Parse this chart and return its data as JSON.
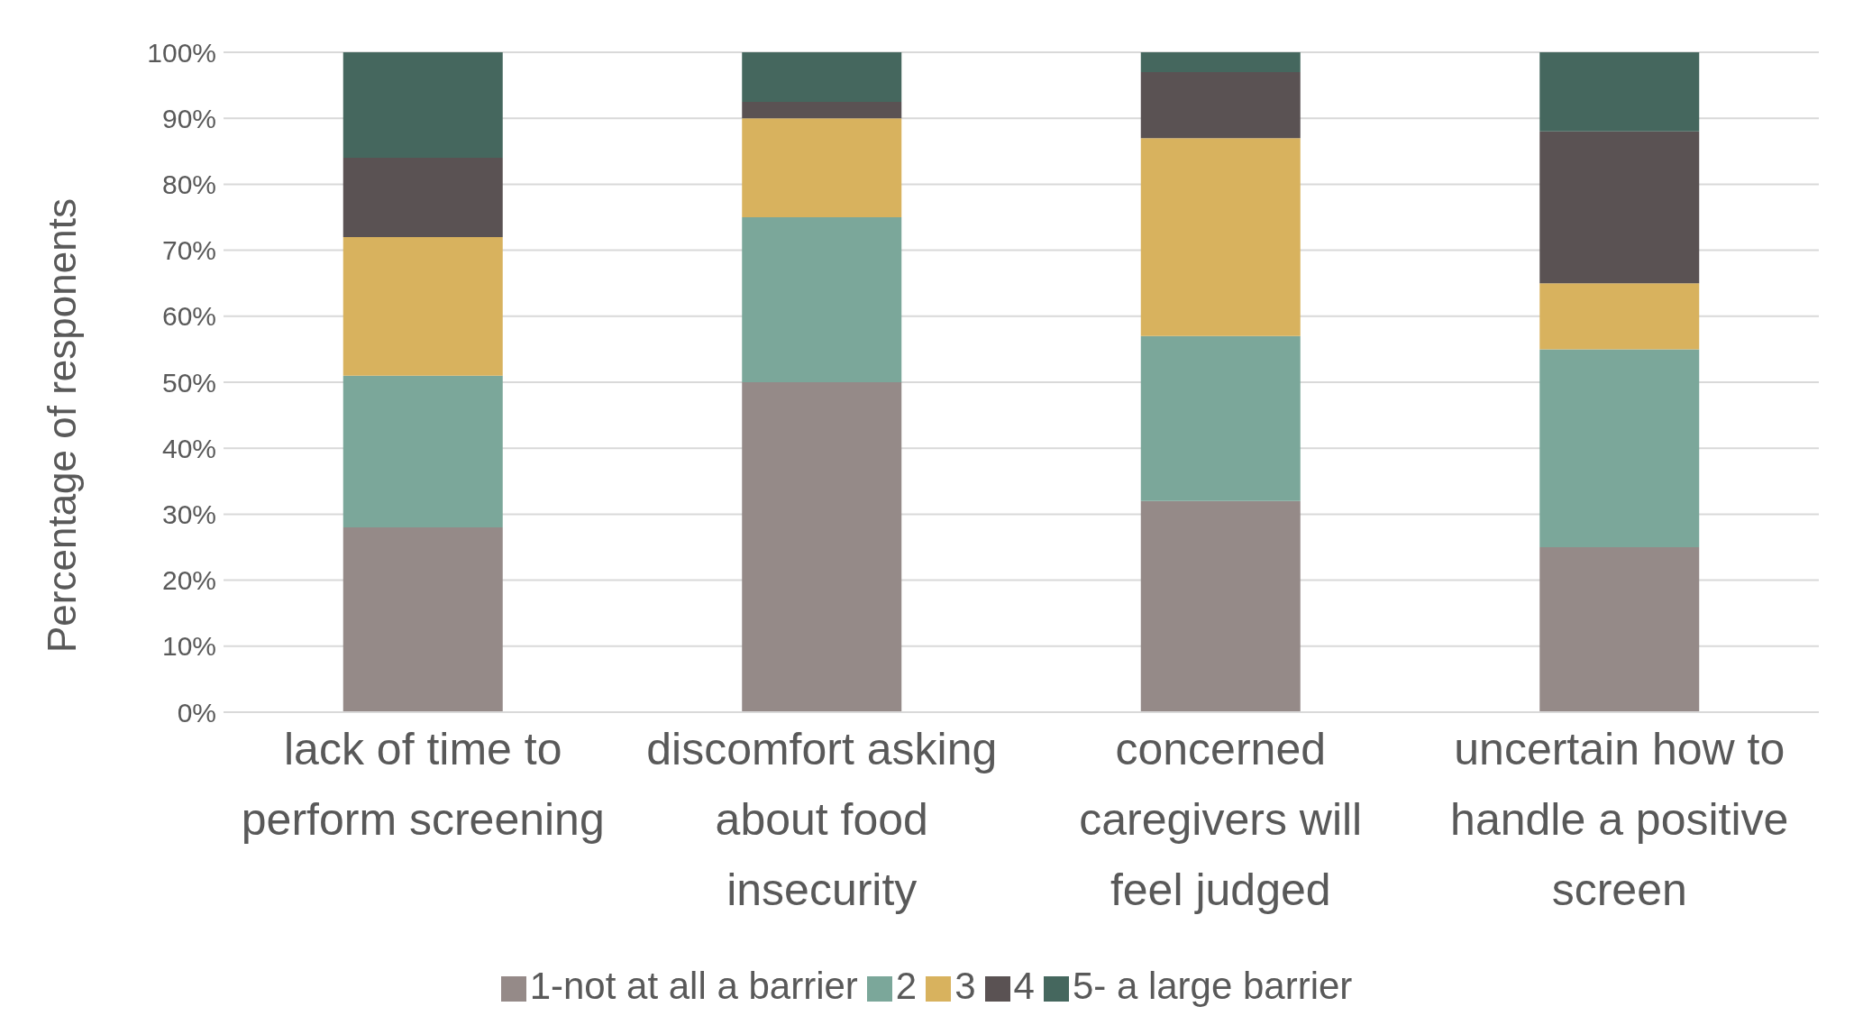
{
  "chart_data": {
    "type": "bar",
    "stacked": true,
    "ylabel": "Percentage of responents",
    "categories": [
      "lack of time to perform screening",
      "discomfort asking about food insecurity",
      "concerned caregivers will feel judged",
      "uncertain how to handle a positive screen"
    ],
    "series": [
      {
        "name": "1-not at all a barrier",
        "color": "#958a88",
        "values": [
          28,
          50,
          32,
          25
        ]
      },
      {
        "name": "2",
        "color": "#7ba79a",
        "values": [
          23,
          25,
          25,
          30
        ]
      },
      {
        "name": "3",
        "color": "#d8b25e",
        "values": [
          21,
          15,
          30,
          10
        ]
      },
      {
        "name": "4",
        "color": "#5a5253",
        "values": [
          12,
          2.5,
          10,
          23
        ]
      },
      {
        "name": "5- a large barrier",
        "color": "#45675e",
        "values": [
          16,
          7.5,
          3,
          12
        ]
      }
    ],
    "ylim": [
      0,
      100
    ],
    "yticks": [
      {
        "value": 0,
        "label": "0%"
      },
      {
        "value": 10,
        "label": "10%"
      },
      {
        "value": 20,
        "label": "20%"
      },
      {
        "value": 30,
        "label": "30%"
      },
      {
        "value": 40,
        "label": "40%"
      },
      {
        "value": 50,
        "label": "50%"
      },
      {
        "value": 60,
        "label": "60%"
      },
      {
        "value": 70,
        "label": "70%"
      },
      {
        "value": 80,
        "label": "80%"
      },
      {
        "value": 90,
        "label": "90%"
      },
      {
        "value": 100,
        "label": "100%"
      }
    ],
    "grid": "y",
    "legend": "bottom"
  }
}
